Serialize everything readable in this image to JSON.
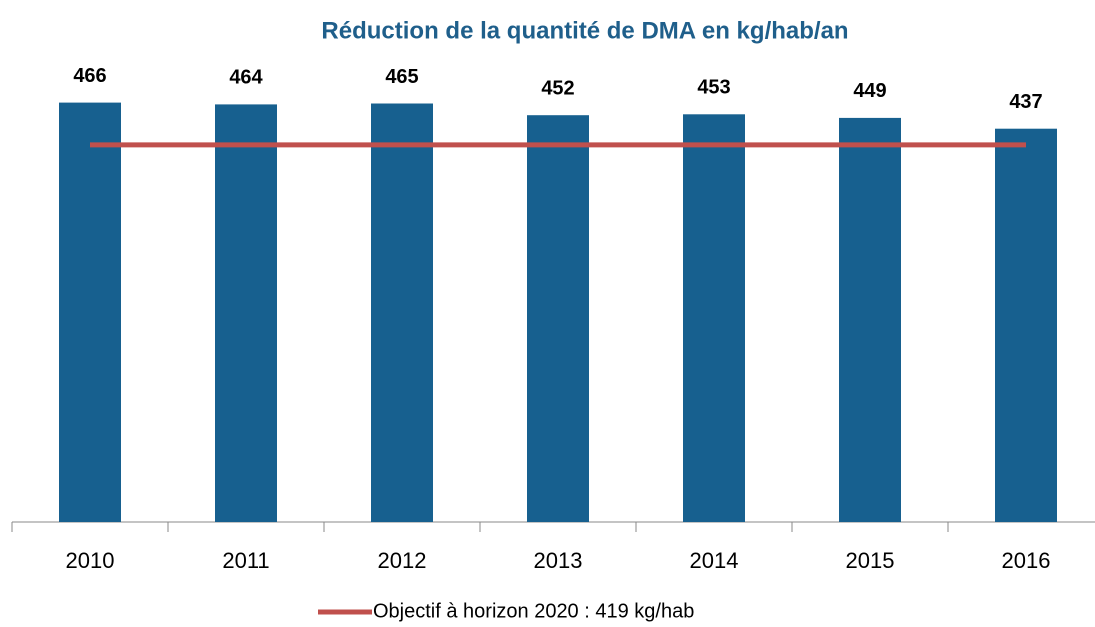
{
  "chart_data": {
    "type": "bar",
    "title": "Réduction de la quantité de DMA en kg/hab/an",
    "categories": [
      "2010",
      "2011",
      "2012",
      "2013",
      "2014",
      "2015",
      "2016"
    ],
    "series": [
      {
        "type": "bar",
        "color": "#17608f",
        "values": [
          466,
          464,
          465,
          452,
          453,
          449,
          437
        ]
      },
      {
        "type": "line",
        "name": "Objectif à horizon 2020 : 419 kg/hab",
        "color": "#c0504d",
        "values": [
          419,
          419,
          419,
          419,
          419,
          419,
          419
        ]
      }
    ],
    "ylim": [
      0,
      500
    ],
    "legend": "bottom"
  }
}
